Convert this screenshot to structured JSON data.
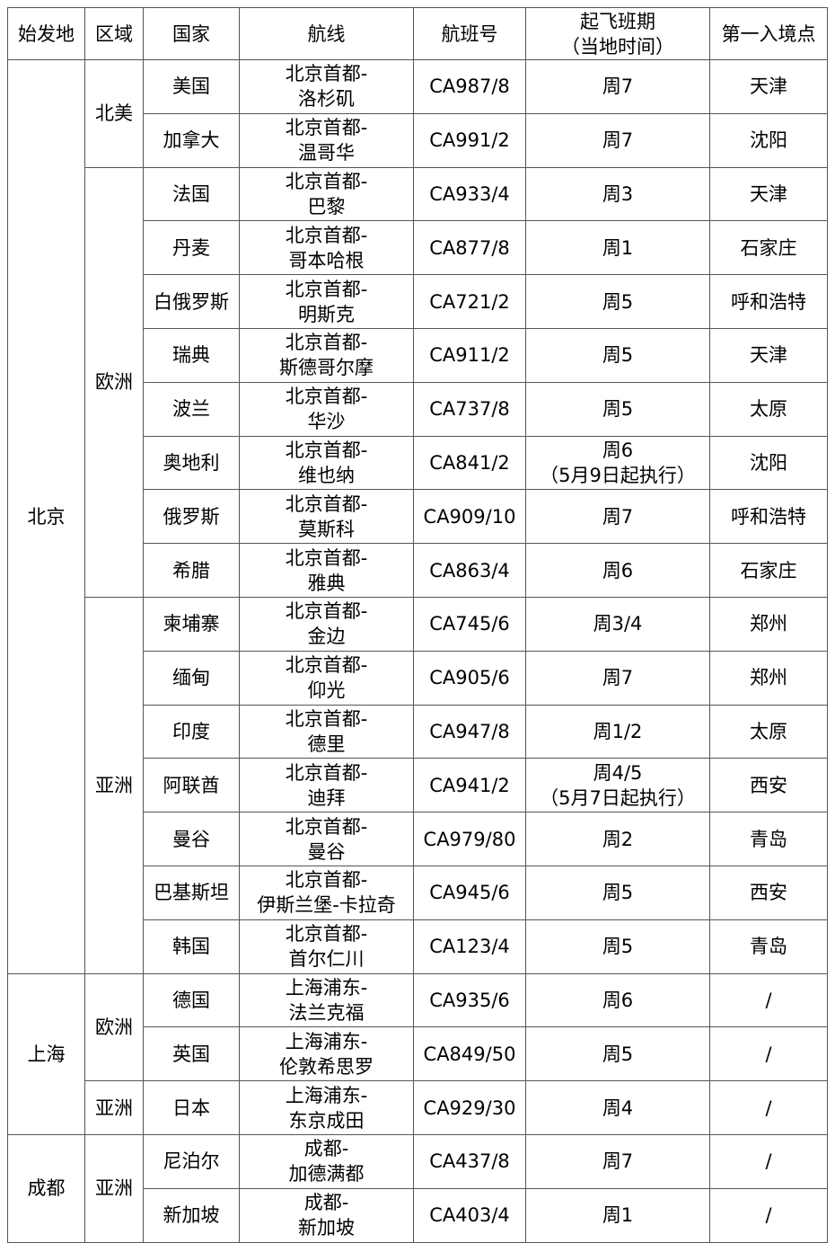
{
  "headers": [
    "始发地",
    "区域",
    "国家",
    "航线",
    "航班号",
    [
      "起飞班期",
      "（当地时间）"
    ],
    "第一入境点"
  ],
  "origins": [
    {
      "name": "北京",
      "regions": [
        {
          "name": "北美",
          "rows": [
            {
              "country": "美国",
              "route": [
                "北京首都-",
                "洛杉矶"
              ],
              "flight": "CA987/8",
              "schedule": [
                "周7"
              ],
              "entry": "天津"
            },
            {
              "country": "加拿大",
              "route": [
                "北京首都-",
                "温哥华"
              ],
              "flight": "CA991/2",
              "schedule": [
                "周7"
              ],
              "entry": "沈阳"
            }
          ]
        },
        {
          "name": "欧洲",
          "rows": [
            {
              "country": "法国",
              "route": [
                "北京首都-",
                "巴黎"
              ],
              "flight": "CA933/4",
              "schedule": [
                "周3"
              ],
              "entry": "天津"
            },
            {
              "country": "丹麦",
              "route": [
                "北京首都-",
                "哥本哈根"
              ],
              "flight": "CA877/8",
              "schedule": [
                "周1"
              ],
              "entry": "石家庄"
            },
            {
              "country": "白俄罗斯",
              "route": [
                "北京首都-",
                "明斯克"
              ],
              "flight": "CA721/2",
              "schedule": [
                "周5"
              ],
              "entry": "呼和浩特"
            },
            {
              "country": "瑞典",
              "route": [
                "北京首都-",
                "斯德哥尔摩"
              ],
              "flight": "CA911/2",
              "schedule": [
                "周5"
              ],
              "entry": "天津"
            },
            {
              "country": "波兰",
              "route": [
                "北京首都-",
                "华沙"
              ],
              "flight": "CA737/8",
              "schedule": [
                "周5"
              ],
              "entry": "太原"
            },
            {
              "country": "奥地利",
              "route": [
                "北京首都-",
                "维也纳"
              ],
              "flight": "CA841/2",
              "schedule": [
                "周6",
                "（5月9日起执行）"
              ],
              "entry": "沈阳"
            },
            {
              "country": "俄罗斯",
              "route": [
                "北京首都-",
                "莫斯科"
              ],
              "flight": "CA909/10",
              "schedule": [
                "周7"
              ],
              "entry": "呼和浩特"
            },
            {
              "country": "希腊",
              "route": [
                "北京首都-",
                "雅典"
              ],
              "flight": "CA863/4",
              "schedule": [
                "周6"
              ],
              "entry": "石家庄"
            }
          ]
        },
        {
          "name": "亚洲",
          "rows": [
            {
              "country": "柬埔寨",
              "route": [
                "北京首都-",
                "金边"
              ],
              "flight": "CA745/6",
              "schedule": [
                "周3/4"
              ],
              "entry": "郑州"
            },
            {
              "country": "缅甸",
              "route": [
                "北京首都-",
                "仰光"
              ],
              "flight": "CA905/6",
              "schedule": [
                "周7"
              ],
              "entry": "郑州"
            },
            {
              "country": "印度",
              "route": [
                "北京首都-",
                "德里"
              ],
              "flight": "CA947/8",
              "schedule": [
                "周1/2"
              ],
              "entry": "太原"
            },
            {
              "country": "阿联酋",
              "route": [
                "北京首都-",
                "迪拜"
              ],
              "flight": "CA941/2",
              "schedule": [
                "周4/5",
                "（5月7日起执行）"
              ],
              "entry": "西安"
            },
            {
              "country": "曼谷",
              "route": [
                "北京首都-",
                "曼谷"
              ],
              "flight": "CA979/80",
              "schedule": [
                "周2"
              ],
              "entry": "青岛"
            },
            {
              "country": "巴基斯坦",
              "route": [
                "北京首都-",
                "伊斯兰堡-卡拉奇"
              ],
              "flight": "CA945/6",
              "schedule": [
                "周5"
              ],
              "entry": "西安"
            },
            {
              "country": "韩国",
              "route": [
                "北京首都-",
                "首尔仁川"
              ],
              "flight": "CA123/4",
              "schedule": [
                "周5"
              ],
              "entry": "青岛"
            }
          ]
        }
      ]
    },
    {
      "name": "上海",
      "regions": [
        {
          "name": "欧洲",
          "rows": [
            {
              "country": "德国",
              "route": [
                "上海浦东-",
                "法兰克福"
              ],
              "flight": "CA935/6",
              "schedule": [
                "周6"
              ],
              "entry": "/"
            },
            {
              "country": "英国",
              "route": [
                "上海浦东-",
                "伦敦希思罗"
              ],
              "flight": "CA849/50",
              "schedule": [
                "周5"
              ],
              "entry": "/"
            }
          ]
        },
        {
          "name": "亚洲",
          "rows": [
            {
              "country": "日本",
              "route": [
                "上海浦东-",
                "东京成田"
              ],
              "flight": "CA929/30",
              "schedule": [
                "周4"
              ],
              "entry": "/"
            }
          ]
        }
      ]
    },
    {
      "name": "成都",
      "regions": [
        {
          "name": "亚洲",
          "rows": [
            {
              "country": "尼泊尔",
              "route": [
                "成都-",
                "加德满都"
              ],
              "flight": "CA437/8",
              "schedule": [
                "周7"
              ],
              "entry": "/"
            },
            {
              "country": "新加坡",
              "route": [
                "成都-",
                "新加坡"
              ],
              "flight": "CA403/4",
              "schedule": [
                "周1"
              ],
              "entry": "/"
            }
          ]
        }
      ]
    }
  ]
}
